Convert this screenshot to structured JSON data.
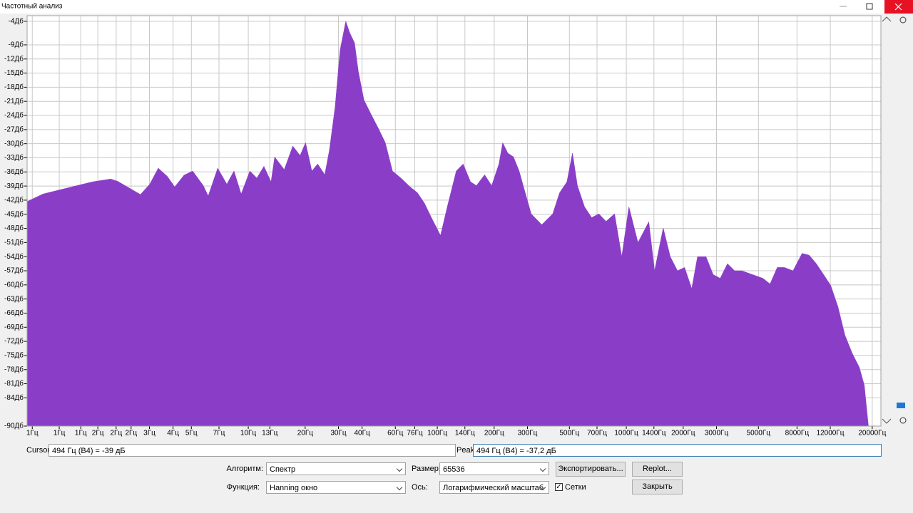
{
  "window": {
    "title": "Частотный анализ",
    "cursor_label": "Cursor:",
    "cursor_value": "494 Гц (B4) = -39 дБ",
    "peak_label": "Peak:",
    "peak_value": "494 Гц (B4) = -37,2 дБ",
    "algorithm_label": "Алгоритм:",
    "algorithm": "Спектр",
    "size_label": "Размер:",
    "size": "65536",
    "export_button": "Экспортировать...",
    "replot_button": "Replot...",
    "function_label": "Функция:",
    "function": "Hanning окно",
    "axis_label": "Ось:",
    "axis": "Логарифмический масштаб",
    "grid_checkbox": "Сетки",
    "close_button": "Закрыть"
  },
  "chart_data": {
    "type": "area",
    "color": "#8a3ec8",
    "log_x": true,
    "grid": true,
    "x": [
      0.676,
      0.82,
      1.16,
      1.5,
      1.87,
      2.04,
      2.32,
      2.69,
      3.01,
      3.34,
      3.74,
      4.08,
      4.57,
      5.08,
      5.78,
      6.14,
      6.89,
      7.7,
      8.4,
      9.17,
      10.2,
      11.1,
      12.1,
      13.2,
      13.8,
      15.5,
      17.2,
      18.8,
      20.1,
      21.7,
      23.3,
      25.4,
      26.9,
      28.8,
      30.6,
      32.8,
      34.3,
      36.5,
      38.2,
      40.9,
      44.6,
      48.7,
      53.1,
      57.9,
      64.2,
      71.9,
      78.4,
      85.4,
      93.1,
      104,
      113,
      126,
      137,
      150,
      161,
      178,
      194,
      212,
      222,
      236,
      253,
      271,
      288,
      314,
      357,
      408,
      444,
      485,
      519,
      551,
      601,
      656,
      716,
      781,
      867,
      946,
      1032,
      1153,
      1315,
      1411,
      1567,
      1709,
      1865,
      2035,
      2220,
      2380,
      2640,
      2880,
      3140,
      3430,
      3740,
      4080,
      4640,
      5280,
      5760,
      6290,
      6860,
      7620,
      8510,
      9280,
      10130,
      11050,
      12060,
      13160,
      14350,
      15660,
      17090,
      18160,
      19100
    ],
    "values": [
      -42.3,
      -40.7,
      -39.2,
      -38.1,
      -37.5,
      -38.0,
      -39.3,
      -40.8,
      -38.6,
      -35.2,
      -37.0,
      -39.2,
      -36.7,
      -35.8,
      -38.9,
      -41.1,
      -35.2,
      -38.6,
      -35.8,
      -40.7,
      -35.8,
      -37.3,
      -34.8,
      -38.1,
      -32.8,
      -35.5,
      -30.5,
      -32.5,
      -29.8,
      -35.8,
      -34.3,
      -36.6,
      -31.3,
      -22.2,
      -10.1,
      -4.0,
      -6.3,
      -8.6,
      -14.6,
      -20.7,
      -23.7,
      -26.7,
      -29.8,
      -35.8,
      -37.3,
      -39.2,
      -40.4,
      -42.6,
      -45.7,
      -49.5,
      -43.4,
      -35.8,
      -34.3,
      -38.1,
      -38.9,
      -36.6,
      -38.9,
      -34.3,
      -29.8,
      -32.0,
      -32.8,
      -35.8,
      -39.6,
      -44.9,
      -47.2,
      -44.9,
      -40.4,
      -38.1,
      -32.0,
      -38.9,
      -43.4,
      -45.7,
      -44.9,
      -46.5,
      -44.9,
      -54.0,
      -43.4,
      -51.0,
      -46.6,
      -57.0,
      -47.9,
      -54.0,
      -57.0,
      -56.3,
      -60.8,
      -54.0,
      -54.0,
      -57.8,
      -58.6,
      -55.5,
      -57.0,
      -57.0,
      -57.8,
      -58.6,
      -59.8,
      -56.3,
      -56.3,
      -57.0,
      -53.3,
      -53.7,
      -55.5,
      -57.8,
      -60.1,
      -64.6,
      -70.7,
      -74.5,
      -77.5,
      -81.3,
      -90
    ],
    "xlim": [
      0.676,
      22230
    ],
    "ylim": [
      -90,
      -2.8
    ],
    "xticks": [
      {
        "value": 0.72,
        "label": "1Гц"
      },
      {
        "value": 1,
        "label": "1Гц"
      },
      {
        "value": 1.3,
        "label": "1Гц"
      },
      {
        "value": 1.6,
        "label": "2Гц"
      },
      {
        "value": 2,
        "label": "2Гц"
      },
      {
        "value": 2.4,
        "label": "2Гц"
      },
      {
        "value": 3,
        "label": "3Гц"
      },
      {
        "value": 4,
        "label": "4Гц"
      },
      {
        "value": 5,
        "label": "5Гц"
      },
      {
        "value": 7,
        "label": "7Гц"
      },
      {
        "value": 10,
        "label": "10Гц"
      },
      {
        "value": 13,
        "label": "13Гц"
      },
      {
        "value": 20,
        "label": "20Гц"
      },
      {
        "value": 30,
        "label": "30Гц"
      },
      {
        "value": 40,
        "label": "40Гц"
      },
      {
        "value": 60,
        "label": "60Гц"
      },
      {
        "value": 76,
        "label": "76Гц"
      },
      {
        "value": 100,
        "label": "100Гц"
      },
      {
        "value": 140,
        "label": "140Гц"
      },
      {
        "value": 200,
        "label": "200Гц"
      },
      {
        "value": 300,
        "label": "300Гц"
      },
      {
        "value": 500,
        "label": "500Гц"
      },
      {
        "value": 700,
        "label": "700Гц"
      },
      {
        "value": 1000,
        "label": "1000Гц"
      },
      {
        "value": 1400,
        "label": "1400Гц"
      },
      {
        "value": 2000,
        "label": "2000Гц"
      },
      {
        "value": 3000,
        "label": "3000Гц"
      },
      {
        "value": 5000,
        "label": "5000Гц"
      },
      {
        "value": 8000,
        "label": "8000Гц"
      },
      {
        "value": 12000,
        "label": "12000Гц"
      },
      {
        "value": 20000,
        "label": "20000Гц"
      }
    ],
    "yticks": [
      {
        "value": -4,
        "label": "-4Дб"
      },
      {
        "value": -9,
        "label": "-9Дб"
      },
      {
        "value": -12,
        "label": "-12Дб"
      },
      {
        "value": -15,
        "label": "-15Дб"
      },
      {
        "value": -18,
        "label": "-18Дб"
      },
      {
        "value": -21,
        "label": "-21Дб"
      },
      {
        "value": -24,
        "label": "-24Дб"
      },
      {
        "value": -27,
        "label": "-27Дб"
      },
      {
        "value": -30,
        "label": "-30Дб"
      },
      {
        "value": -33,
        "label": "-33Дб"
      },
      {
        "value": -36,
        "label": "-36Дб"
      },
      {
        "value": -39,
        "label": "-39Дб"
      },
      {
        "value": -42,
        "label": "-42Дб"
      },
      {
        "value": -45,
        "label": "-45Дб"
      },
      {
        "value": -48,
        "label": "-48Дб"
      },
      {
        "value": -51,
        "label": "-51Дб"
      },
      {
        "value": -54,
        "label": "-54Дб"
      },
      {
        "value": -57,
        "label": "-57Дб"
      },
      {
        "value": -60,
        "label": "-60Дб"
      },
      {
        "value": -63,
        "label": "-63Дб"
      },
      {
        "value": -66,
        "label": "-66Дб"
      },
      {
        "value": -69,
        "label": "-69Дб"
      },
      {
        "value": -72,
        "label": "-72Дб"
      },
      {
        "value": -75,
        "label": "-75Дб"
      },
      {
        "value": -78,
        "label": "-78Дб"
      },
      {
        "value": -81,
        "label": "-81Дб"
      },
      {
        "value": -84,
        "label": "-84Дб"
      },
      {
        "value": -90,
        "label": "-90Дб"
      }
    ]
  }
}
